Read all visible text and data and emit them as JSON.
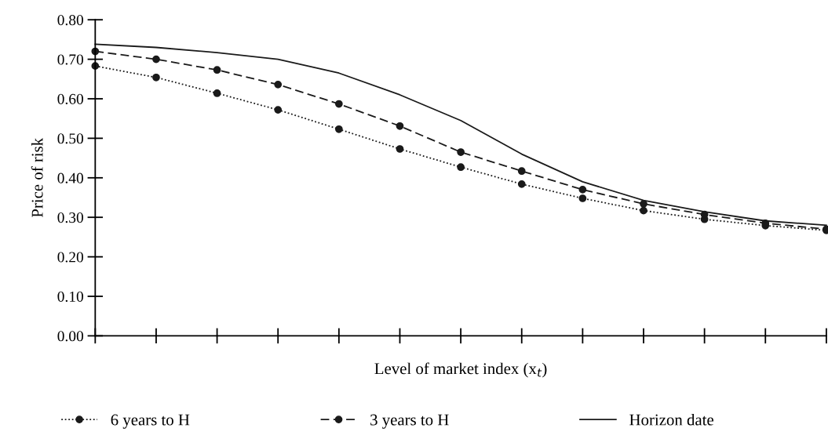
{
  "chart_data": {
    "type": "line",
    "xlabel": "Level of market index (x$_{t}$)",
    "ylabel": "Price of risk",
    "categories": [
      null,
      null,
      null,
      null,
      null,
      null,
      null,
      null,
      null,
      null,
      null,
      null,
      null
    ],
    "series": [
      {
        "name": "6 years to H",
        "color": "#1a1a1a",
        "marker": "circle",
        "line_style": "dotted",
        "values": [
          0.683,
          0.654,
          0.614,
          0.572,
          0.523,
          0.473,
          0.427,
          0.384,
          0.348,
          0.317,
          0.295,
          0.279,
          0.267
        ]
      },
      {
        "name": "3 years to H",
        "color": "#1a1a1a",
        "marker": "circle",
        "line_style": "dashed",
        "values": [
          0.72,
          0.7,
          0.673,
          0.636,
          0.587,
          0.531,
          0.465,
          0.417,
          0.37,
          0.334,
          0.307,
          0.285,
          0.27
        ]
      },
      {
        "name": "Horizon date",
        "color": "#1a1a1a",
        "marker": "none",
        "line_style": "solid",
        "values": [
          0.738,
          0.73,
          0.717,
          0.7,
          0.665,
          0.61,
          0.545,
          0.46,
          0.39,
          0.343,
          0.314,
          0.291,
          0.28
        ]
      }
    ],
    "ylim": [
      0,
      0.8
    ],
    "yticks": [
      {
        "value": 0,
        "label": "0.00"
      },
      {
        "value": 0.1,
        "label": "0.10"
      },
      {
        "value": 0.2,
        "label": "0.20"
      },
      {
        "value": 0.3,
        "label": "0.30"
      },
      {
        "value": 0.4,
        "label": "0.40"
      },
      {
        "value": 0.5,
        "label": "0.50"
      },
      {
        "value": 0.6,
        "label": "0.60"
      },
      {
        "value": 0.7,
        "label": "0.70"
      },
      {
        "value": 0.8,
        "label": "0.80"
      }
    ],
    "grid": false,
    "legend": "bottom"
  }
}
